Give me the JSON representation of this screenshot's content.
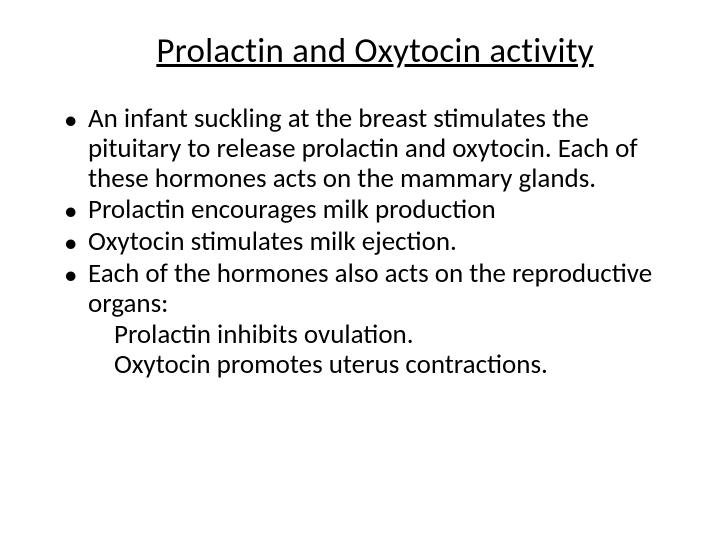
{
  "title": "Prolactin and Oxytocin activity",
  "bullets": {
    "b0": "An infant suckling at the breast stimulates the pituitary to release prolactin and oxytocin. Each of these hormones acts on the mammary glands.",
    "b1": "Prolactin encourages milk production",
    "b2": "Oxytocin stimulates milk ejection.",
    "b3": "Each of the hormones also acts on the reproductive organs:"
  },
  "sublines": {
    "s0": "Prolactin inhibits ovulation.",
    "s1": "Oxytocin promotes uterus contractions."
  },
  "style": {
    "background_color": "#ffffff",
    "text_color": "#000000",
    "title_fontsize": 35,
    "body_fontsize": 27,
    "font_family": "Calibri",
    "bullet_glyph": "•"
  }
}
